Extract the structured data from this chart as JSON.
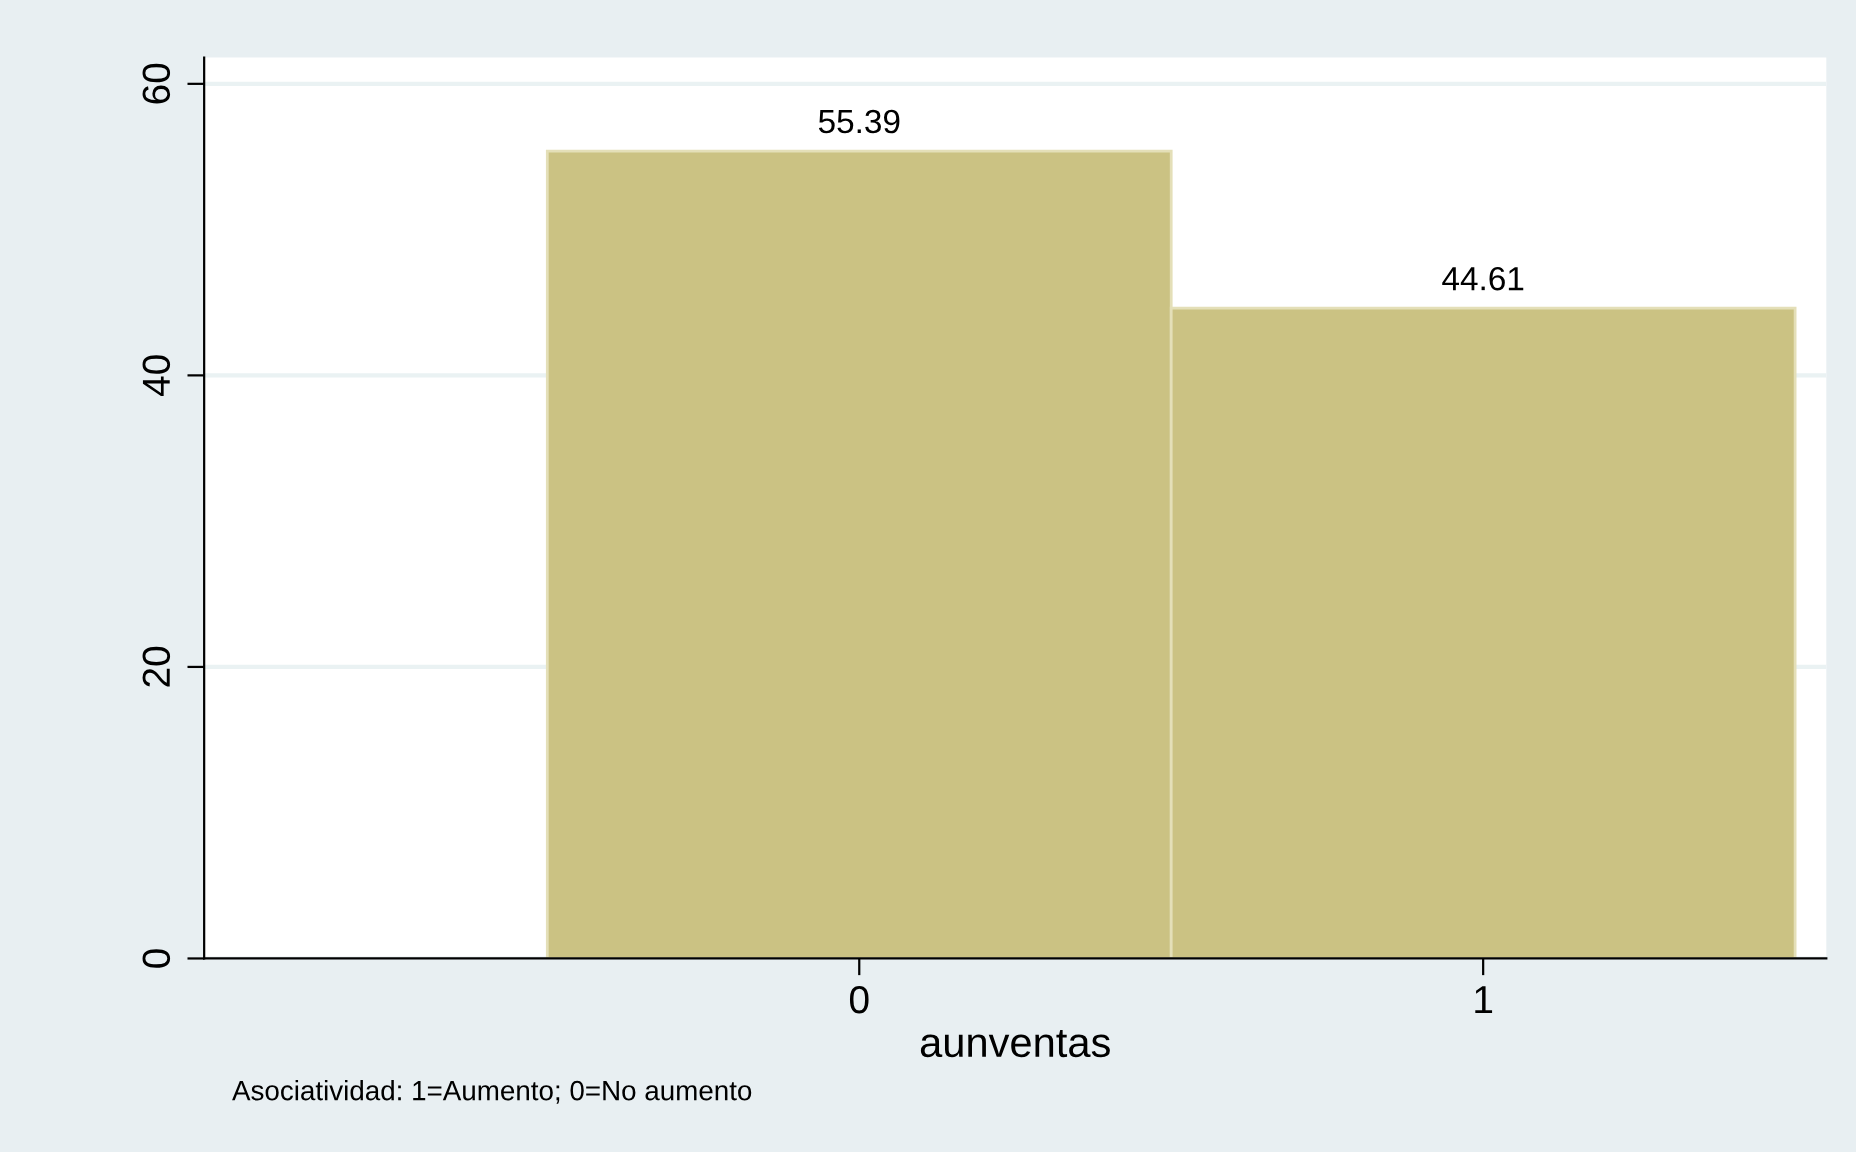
{
  "chart_data": {
    "type": "histogram",
    "xlabel": "aunventas",
    "bins": [
      -0.5,
      0.5,
      1.5
    ],
    "values": [
      55.39,
      44.61
    ],
    "color": "#cbc283",
    "data_labels": true,
    "xlim": [
      -1.05,
      1.55
    ],
    "xticks": [
      0,
      1
    ],
    "ylim": [
      0,
      61.8
    ],
    "yticks": [
      0,
      20,
      40,
      60
    ],
    "grid": "y",
    "annotations": [
      "Asociatividad: 1=Aumento; 0=No aumento"
    ]
  }
}
